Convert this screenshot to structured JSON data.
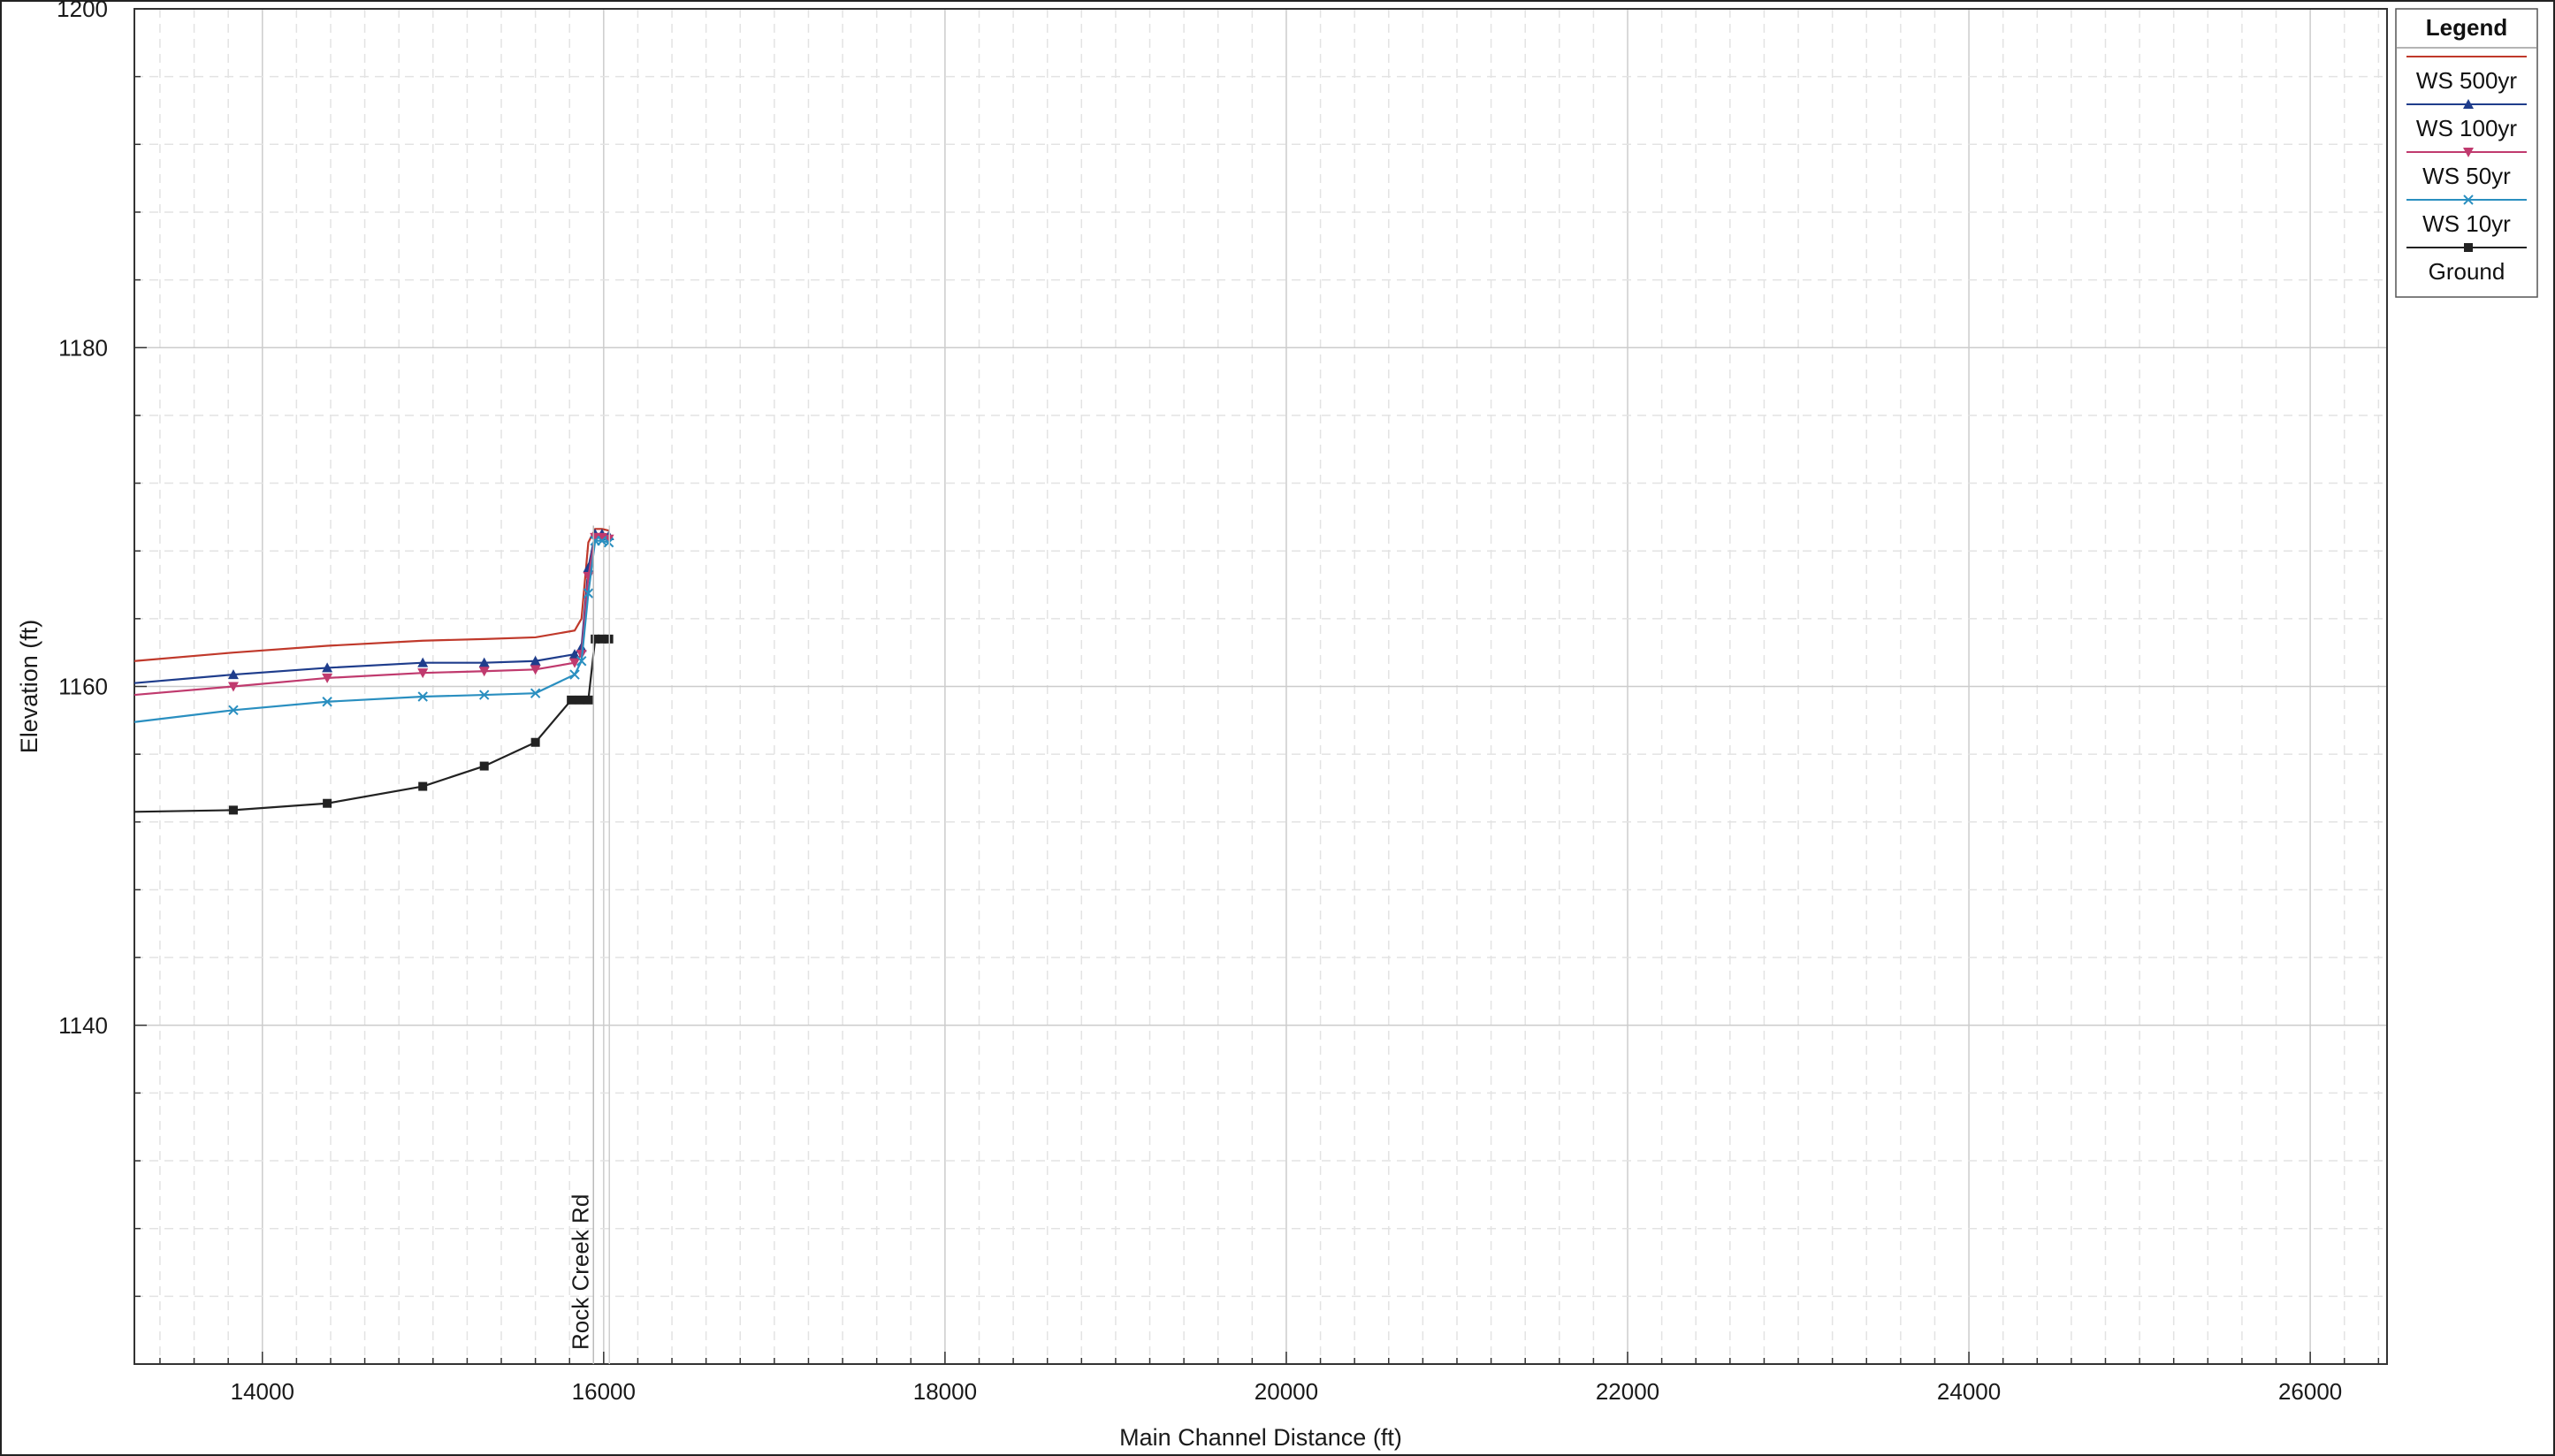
{
  "chart_data": {
    "type": "line",
    "title": "",
    "xlabel": "Main Channel Distance (ft)",
    "ylabel": "Elevation (ft)",
    "xlim": [
      13250,
      26450
    ],
    "ylim": [
      1120,
      1200
    ],
    "xticks": [
      14000,
      16000,
      18000,
      20000,
      22000,
      24000,
      26000
    ],
    "yticks": [
      1140,
      1160,
      1180,
      1200
    ],
    "grid": true,
    "legend_title": "Legend",
    "legend_position": "top-right",
    "annotation": {
      "text": "Rock Creek Rd",
      "x": 15940
    },
    "series": [
      {
        "name": "WS 500yr",
        "color": "#c0392b",
        "marker": "none",
        "x": [
          13250,
          13830,
          14380,
          14940,
          15300,
          15600,
          15830,
          15870,
          15910,
          15950,
          15990,
          16030
        ],
        "y": [
          1161.5,
          1162.0,
          1162.4,
          1162.7,
          1162.8,
          1162.9,
          1163.3,
          1164.0,
          1168.5,
          1169.3,
          1169.3,
          1169.2
        ]
      },
      {
        "name": "WS 100yr",
        "color": "#1f3d8c",
        "marker": "triangle-up",
        "x": [
          13250,
          13830,
          14380,
          14940,
          15300,
          15600,
          15830,
          15870,
          15910,
          15950,
          15990,
          16030
        ],
        "y": [
          1160.2,
          1160.7,
          1161.1,
          1161.4,
          1161.4,
          1161.5,
          1161.9,
          1162.3,
          1167.0,
          1169.0,
          1169.0,
          1168.9
        ]
      },
      {
        "name": "WS 50yr",
        "color": "#c03a6e",
        "marker": "triangle-down",
        "x": [
          13250,
          13830,
          14380,
          14940,
          15300,
          15600,
          15830,
          15870,
          15910,
          15950,
          15990,
          16030
        ],
        "y": [
          1159.5,
          1160.0,
          1160.5,
          1160.8,
          1160.9,
          1161.0,
          1161.4,
          1161.9,
          1166.5,
          1168.8,
          1168.8,
          1168.7
        ]
      },
      {
        "name": "WS 10yr",
        "color": "#2a8fc0",
        "marker": "x",
        "x": [
          13250,
          13830,
          14380,
          14940,
          15300,
          15600,
          15830,
          15870,
          15910,
          15950,
          15990,
          16030
        ],
        "y": [
          1157.9,
          1158.6,
          1159.1,
          1159.4,
          1159.5,
          1159.6,
          1160.7,
          1161.5,
          1165.5,
          1168.6,
          1168.6,
          1168.5
        ]
      },
      {
        "name": "Ground",
        "color": "#222222",
        "marker": "square",
        "x": [
          13250,
          13830,
          14380,
          14940,
          15300,
          15600,
          15810,
          15860,
          15910,
          15950,
          15990,
          16030
        ],
        "y": [
          1152.6,
          1152.7,
          1153.1,
          1154.1,
          1155.3,
          1156.7,
          1159.2,
          1159.2,
          1159.2,
          1162.8,
          1162.8,
          1162.8
        ]
      }
    ]
  }
}
